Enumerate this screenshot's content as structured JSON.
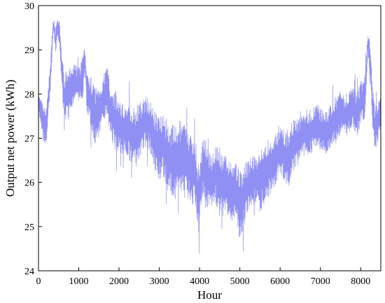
{
  "chart_data": {
    "type": "line",
    "title": "",
    "xlabel": "Hour",
    "ylabel": "Output net power (kWh)",
    "xlim": [
      0,
      8500
    ],
    "ylim": [
      24,
      30
    ],
    "x_ticks": [
      0,
      1000,
      2000,
      3000,
      4000,
      5000,
      6000,
      7000,
      8000
    ],
    "y_ticks": [
      24,
      25,
      26,
      27,
      28,
      29,
      30
    ],
    "grid": false,
    "legend": "none",
    "series_color": "#6b6bf0",
    "series": [
      {
        "x": [
          0,
          50,
          100,
          150,
          200,
          250,
          300,
          350,
          380,
          420,
          480,
          520,
          580,
          650,
          700,
          800,
          900,
          1000,
          1100,
          1160,
          1200,
          1300,
          1400,
          1500,
          1600,
          1700,
          1800,
          1900,
          2000,
          2100,
          2200,
          2300,
          2400,
          2500,
          2600,
          2700,
          2800,
          2900,
          3000,
          3100,
          3200,
          3300,
          3400,
          3500,
          3600,
          3700,
          3800,
          3900,
          3980,
          4100,
          4200,
          4300,
          4400,
          4500,
          4600,
          4700,
          4800,
          4900,
          5000,
          5100,
          5200,
          5300,
          5400,
          5500,
          5600,
          5700,
          5800,
          5900,
          6000,
          6100,
          6200,
          6300,
          6400,
          6500,
          6600,
          6700,
          6800,
          6900,
          7000,
          7100,
          7200,
          7300,
          7400,
          7500,
          7600,
          7700,
          7800,
          7900,
          8000,
          8100,
          8180,
          8250,
          8300,
          8350,
          8400,
          8450,
          8500
        ],
        "y": [
          27.8,
          27.6,
          27.4,
          27.2,
          27.3,
          27.9,
          28.4,
          29.3,
          29.6,
          29.2,
          29.5,
          29.4,
          28.5,
          27.8,
          28.0,
          28.1,
          28.3,
          28.2,
          28.4,
          28.8,
          28.0,
          27.8,
          27.5,
          27.6,
          27.9,
          28.1,
          27.6,
          27.4,
          27.3,
          27.2,
          27.2,
          27.1,
          27.0,
          27.1,
          27.3,
          27.4,
          27.2,
          26.9,
          26.8,
          26.9,
          26.6,
          26.5,
          26.4,
          26.6,
          26.5,
          26.4,
          26.3,
          26.2,
          25.6,
          26.4,
          26.1,
          26.0,
          26.2,
          26.0,
          25.9,
          25.9,
          25.8,
          25.8,
          25.5,
          25.7,
          25.9,
          26.0,
          26.1,
          26.0,
          26.2,
          26.3,
          26.4,
          26.5,
          26.8,
          26.6,
          26.5,
          26.8,
          26.9,
          27.0,
          27.1,
          27.1,
          27.2,
          27.3,
          27.2,
          27.1,
          27.2,
          27.3,
          27.4,
          27.6,
          27.5,
          27.6,
          27.7,
          27.5,
          27.8,
          27.9,
          29.2,
          28.6,
          27.6,
          27.2,
          27.3,
          27.5,
          27.7
        ],
        "amplitude": [
          0.2,
          0.3,
          0.4,
          0.5,
          0.4,
          0.4,
          0.3,
          0.3,
          0.2,
          0.3,
          0.2,
          0.3,
          0.4,
          0.6,
          0.6,
          0.5,
          0.4,
          0.4,
          0.5,
          0.3,
          0.5,
          0.6,
          0.7,
          0.6,
          0.5,
          0.6,
          0.6,
          0.7,
          0.6,
          0.6,
          0.6,
          0.7,
          0.7,
          0.7,
          0.6,
          0.6,
          0.6,
          0.7,
          0.8,
          0.8,
          0.8,
          0.8,
          0.9,
          0.8,
          0.9,
          0.8,
          0.8,
          0.8,
          0.8,
          0.7,
          0.7,
          0.7,
          0.7,
          0.8,
          0.7,
          0.7,
          0.7,
          0.7,
          0.8,
          0.7,
          0.6,
          0.6,
          0.6,
          0.7,
          0.7,
          0.7,
          0.6,
          0.6,
          0.6,
          0.6,
          0.7,
          0.6,
          0.6,
          0.5,
          0.5,
          0.6,
          0.5,
          0.5,
          0.5,
          0.5,
          0.5,
          0.5,
          0.6,
          0.6,
          0.5,
          0.5,
          0.5,
          0.5,
          0.5,
          0.5,
          0.3,
          0.4,
          0.6,
          0.5,
          0.5,
          0.5,
          0.5
        ]
      }
    ]
  }
}
